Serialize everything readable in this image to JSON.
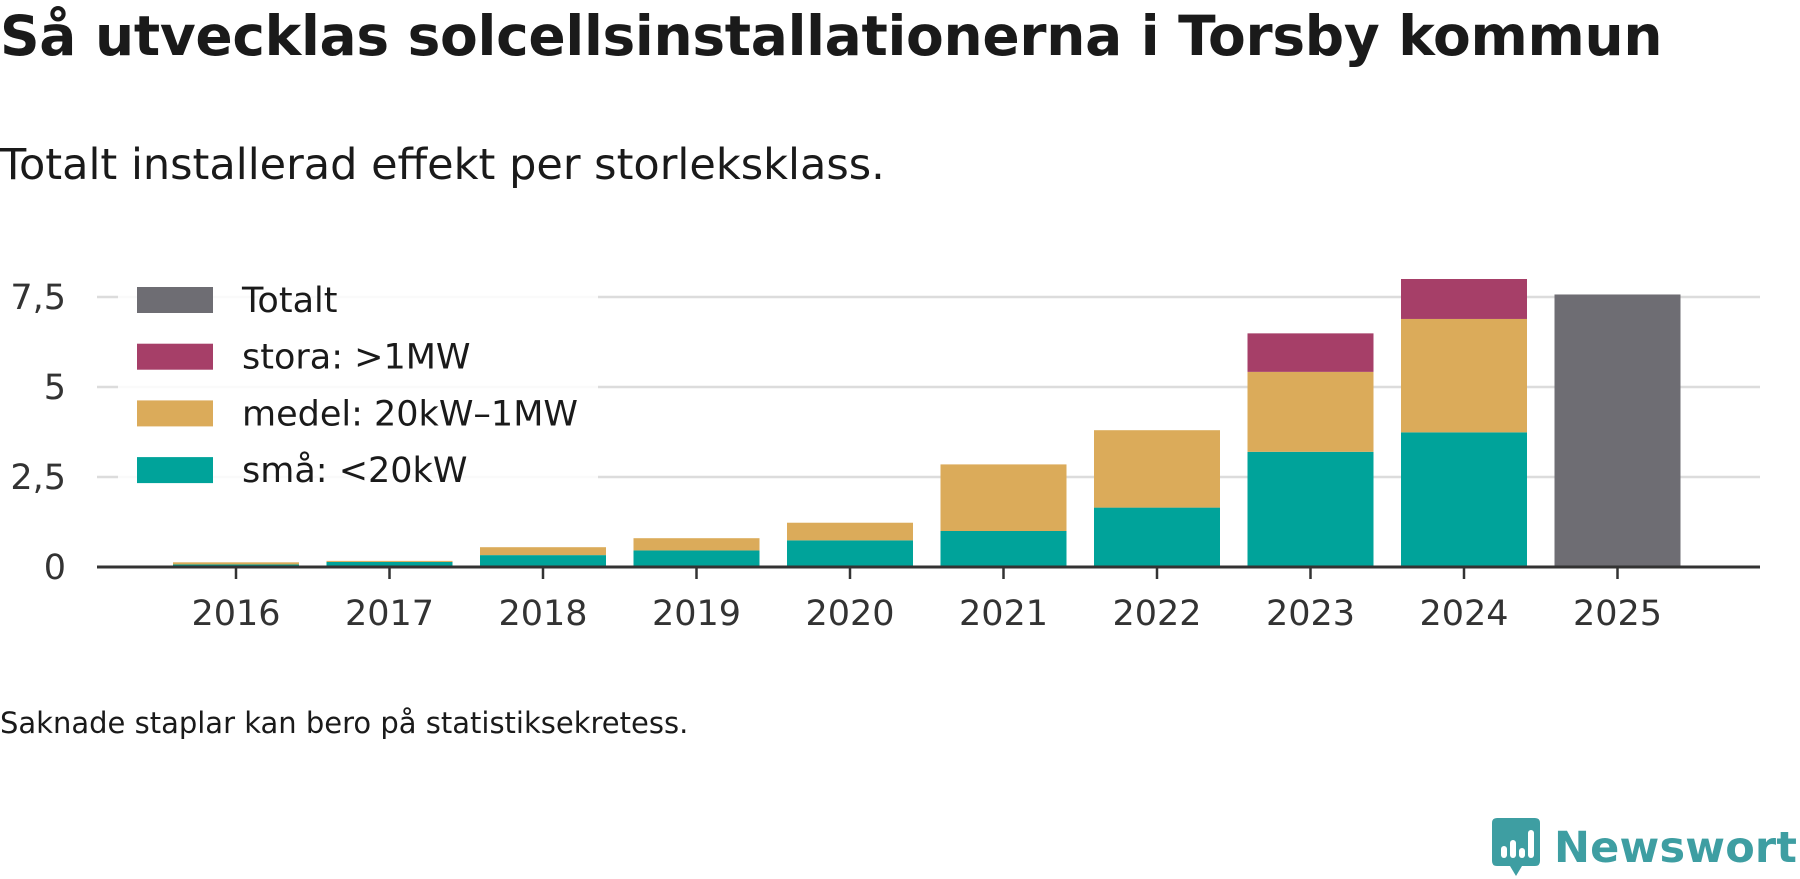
{
  "title": "Så utvecklas solcellsinstallationerna i Torsby kommun",
  "subtitle": "Totalt installerad effekt per storleksklass.",
  "note": "Saknade staplar kan bero på statistiksekretess.",
  "brand": {
    "name": "Newsworthy",
    "logo_icon": "newsworthy-logo-icon",
    "color": "#3e9ea2"
  },
  "chart_data": {
    "type": "bar",
    "stacked": true,
    "title": "Så utvecklas solcellsinstallationerna i Torsby kommun",
    "subtitle": "Totalt installerad effekt per storleksklass.",
    "xlabel": "",
    "ylabel": "",
    "categories": [
      "2016",
      "2017",
      "2018",
      "2019",
      "2020",
      "2021",
      "2022",
      "2023",
      "2024",
      "2025"
    ],
    "ylim": [
      0,
      8
    ],
    "yticks": [
      0,
      2.5,
      5,
      7.5
    ],
    "ytick_labels": [
      "0",
      "2,5",
      "5",
      "7,5"
    ],
    "grid": true,
    "legend_position": "top-left",
    "series": [
      {
        "name": "små: <20kW",
        "color": "#00a39a",
        "values": [
          0.07,
          0.14,
          0.33,
          0.46,
          0.74,
          1.0,
          1.65,
          3.2,
          3.74,
          null
        ]
      },
      {
        "name": "medel: 20kW–1MW",
        "color": "#dbab5a",
        "values": [
          0.06,
          0.03,
          0.22,
          0.34,
          0.49,
          1.85,
          2.15,
          2.22,
          3.15,
          null
        ]
      },
      {
        "name": "stora: >1MW",
        "color": "#a63f68",
        "values": [
          null,
          null,
          null,
          null,
          null,
          null,
          null,
          1.07,
          1.11,
          null
        ]
      },
      {
        "name": "Totalt",
        "color": "#6e6d73",
        "values": [
          null,
          null,
          null,
          null,
          null,
          null,
          null,
          null,
          null,
          7.57
        ]
      }
    ],
    "legend": [
      "Totalt",
      "stora: >1MW",
      "medel: 20kW–1MW",
      "små: <20kW"
    ]
  }
}
